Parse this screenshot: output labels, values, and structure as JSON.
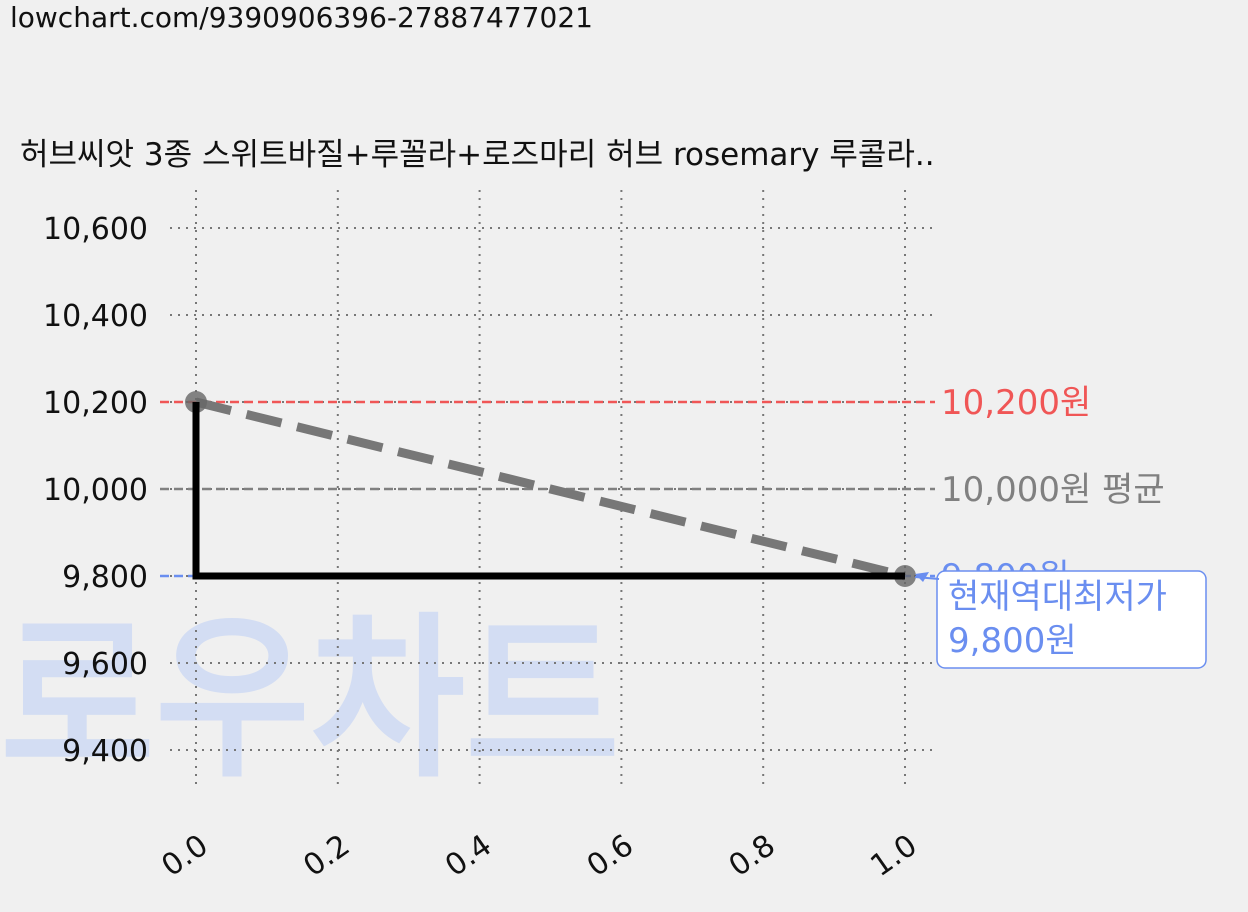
{
  "url_text": "lowchart.com/9390906396-27887477021",
  "watermark": "로우차트",
  "chart_data": {
    "type": "line",
    "title": "허브씨앗 3종 스위트바질+루꼴라+로즈마리 허브 rosemary 루콜라..",
    "xlabel": "",
    "ylabel": "",
    "xlim": [
      -0.1,
      1.05
    ],
    "ylim": [
      9300,
      10680
    ],
    "x_ticks": [
      0.0,
      0.2,
      0.4,
      0.6,
      0.8,
      1.0
    ],
    "x_tick_labels": [
      "0.0",
      "0.2",
      "0.4",
      "0.6",
      "0.8",
      "1.0"
    ],
    "y_ticks": [
      9400,
      9600,
      9800,
      10000,
      10200,
      10400,
      10600
    ],
    "y_tick_labels": [
      "9,400",
      "9,600",
      "9,800",
      "10,000",
      "10,200",
      "10,400",
      "10,600"
    ],
    "grid": true,
    "series": [
      {
        "style": "step",
        "color": "#000000",
        "points": [
          [
            0.0,
            10200
          ],
          [
            0.0,
            9800
          ],
          [
            1.0,
            9800
          ]
        ]
      },
      {
        "style": "dashed",
        "color": "#777777",
        "points": [
          [
            0.0,
            10200
          ],
          [
            1.0,
            9800
          ]
        ]
      }
    ],
    "reference_lines": [
      {
        "value": 10200,
        "label": "10,200원",
        "color": "#f05656"
      },
      {
        "value": 10000,
        "label": "10,000원 평균",
        "color": "#808080"
      },
      {
        "value": 9800,
        "label": "9,800원",
        "color": "#6a8ef0"
      }
    ],
    "annotation": {
      "x": 1.0,
      "y": 9800,
      "lines": [
        "현재역대최저가",
        "9,800원"
      ],
      "color": "#6a8ef0"
    }
  }
}
